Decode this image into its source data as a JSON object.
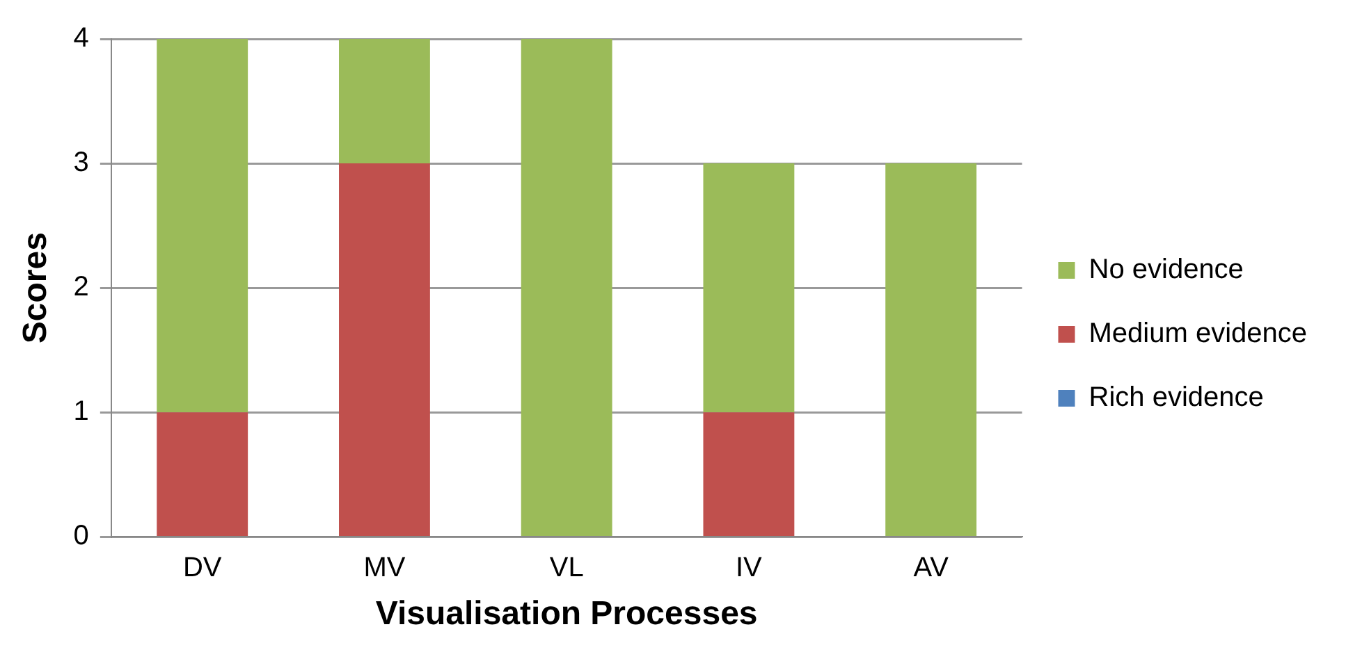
{
  "chart_data": {
    "type": "bar",
    "stacked": true,
    "xlabel": "Visualisation Processes",
    "ylabel": "Scores",
    "categories": [
      "DV",
      "MV",
      "VL",
      "IV",
      "AV"
    ],
    "series": [
      {
        "name": "Rich evidence",
        "color": "#4f81bd",
        "values": [
          0,
          0,
          0,
          0,
          0
        ]
      },
      {
        "name": "Medium evidence",
        "color": "#c0504d",
        "values": [
          1,
          3,
          0,
          1,
          0
        ]
      },
      {
        "name": "No evidence",
        "color": "#9bbb59",
        "values": [
          3,
          1,
          4,
          2,
          3
        ]
      }
    ],
    "ylim": [
      0,
      4
    ],
    "yticks": [
      0,
      1,
      2,
      3,
      4
    ],
    "grid": "y",
    "legend": "right"
  }
}
